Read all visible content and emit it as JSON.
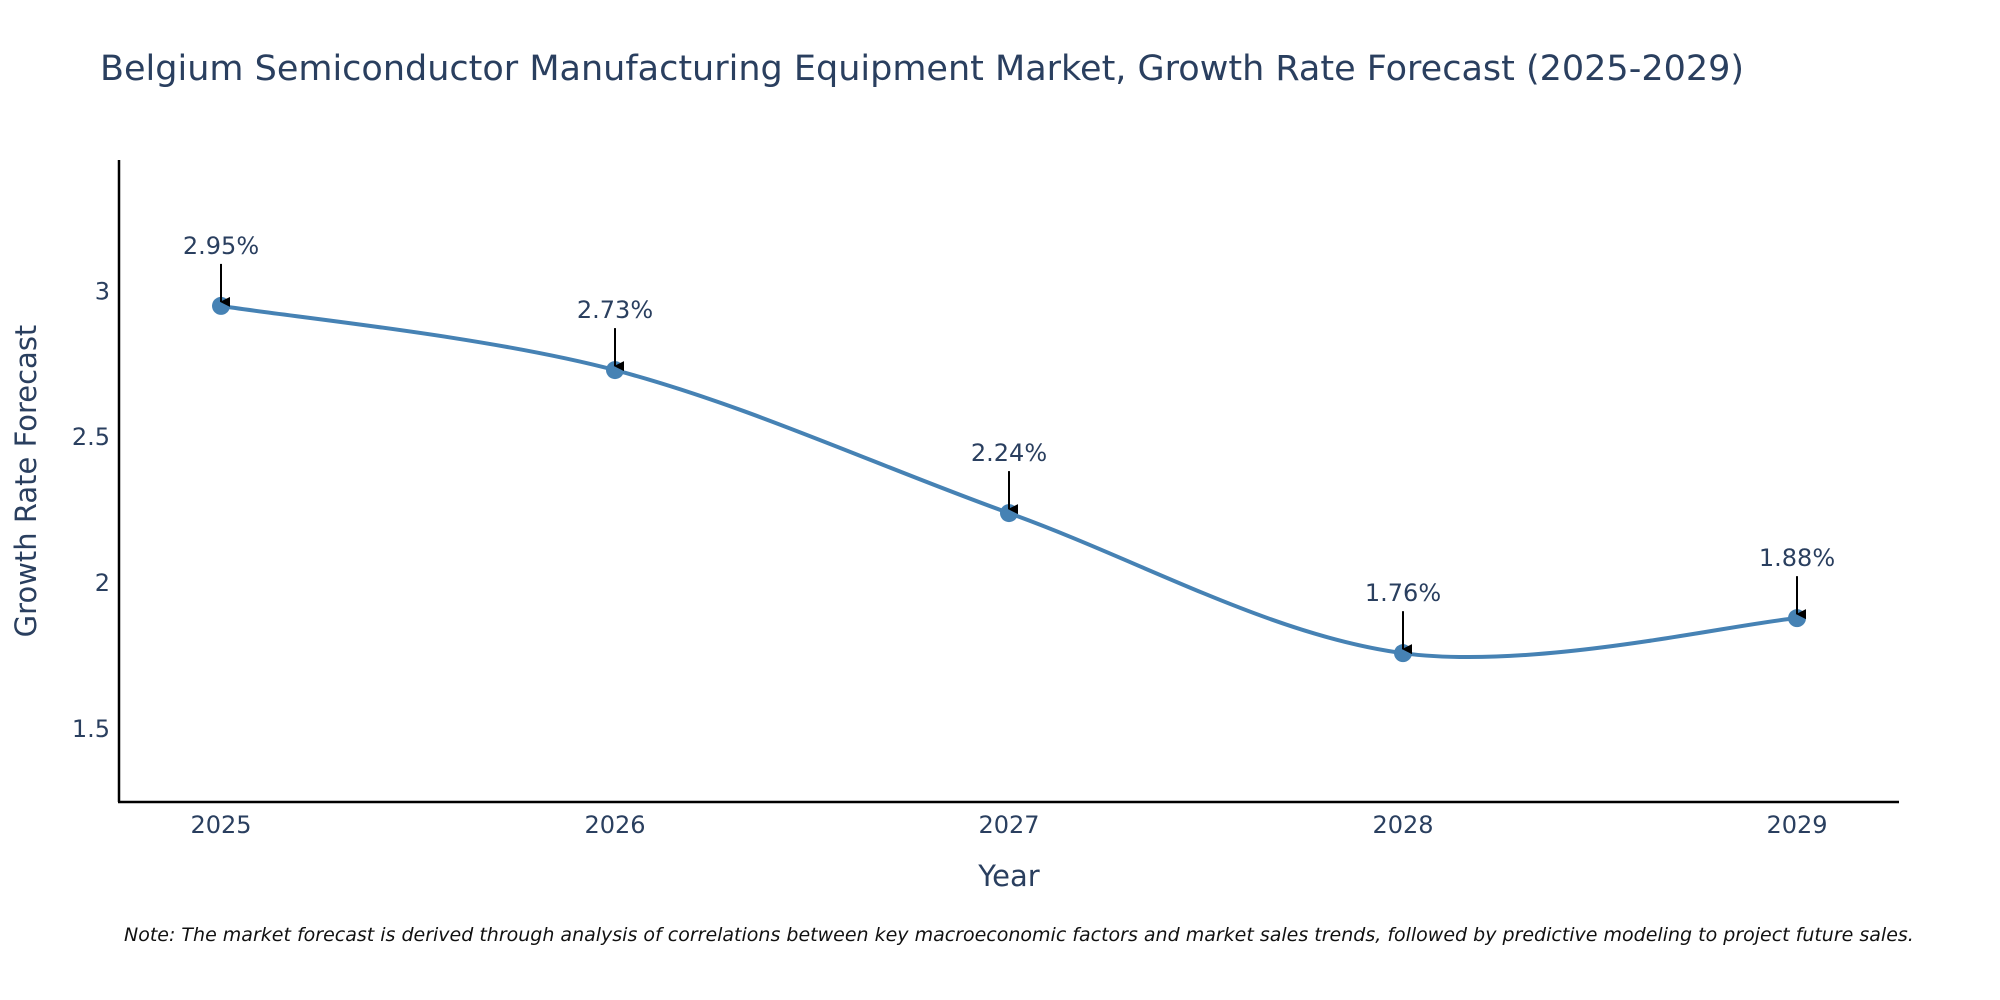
{
  "colors": {
    "line": "#4682b4",
    "text": "#2a3f5f",
    "axis": "#000000",
    "arrow": "#000000"
  },
  "chart_data": {
    "type": "line",
    "title": "Belgium Semiconductor Manufacturing Equipment Market, Growth Rate Forecast (2025-2029)",
    "xlabel": "Year",
    "ylabel": "Growth Rate Forecast",
    "categories": [
      "2025",
      "2026",
      "2027",
      "2028",
      "2029"
    ],
    "series": [
      {
        "name": "Growth Rate Forecast",
        "values": [
          2.95,
          2.73,
          2.24,
          1.76,
          1.88
        ],
        "labels": [
          "2.95%",
          "2.73%",
          "2.24%",
          "1.76%",
          "1.88%"
        ]
      }
    ],
    "ylim": [
      1.25,
      3.45
    ],
    "yticks": [
      1.5,
      2,
      2.5,
      3
    ],
    "ytick_labels": [
      "1.5",
      "2",
      "2.5",
      "3"
    ],
    "grid": false,
    "line_shape": "spline",
    "note": "Note: The market forecast is derived through analysis of correlations between key macroeconomic factors and market sales trends, followed by predictive modeling to project future sales."
  }
}
